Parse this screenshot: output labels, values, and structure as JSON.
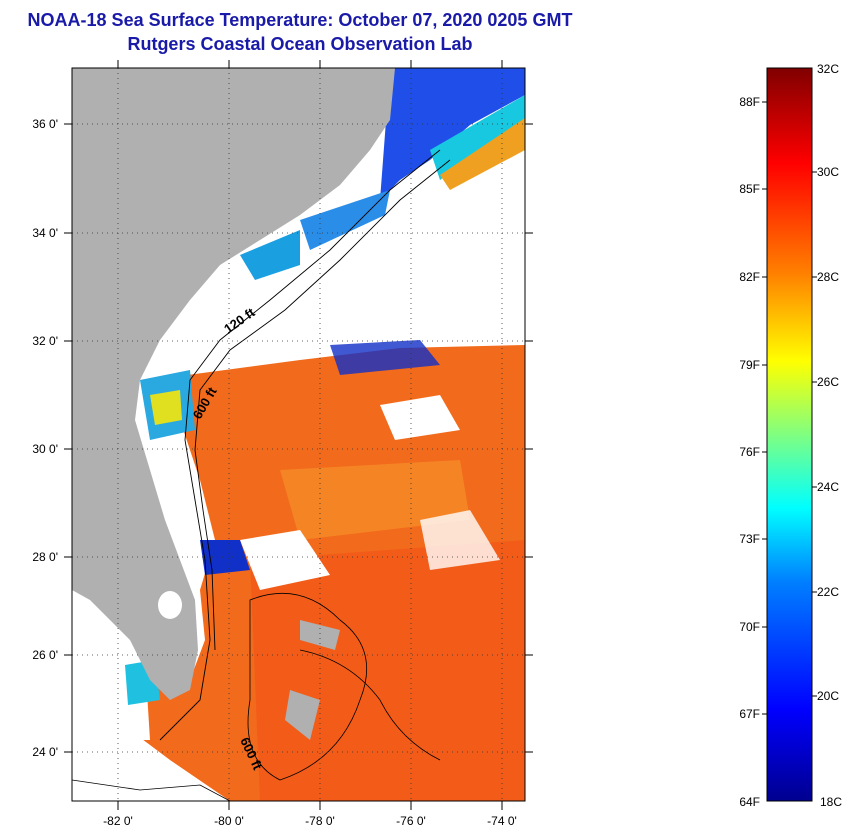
{
  "title_line1": "NOAA-18 Sea Surface Temperature:  October 07, 2020 0205 GMT",
  "title_line2": "Rutgers Coastal Ocean Observation Lab",
  "map": {
    "lon_ticks": [
      {
        "value": -82,
        "label": "-82 0'"
      },
      {
        "value": -80,
        "label": "-80 0'"
      },
      {
        "value": -78,
        "label": "-78 0'"
      },
      {
        "value": -76,
        "label": "-76 0'"
      },
      {
        "value": -74,
        "label": "-74 0'"
      }
    ],
    "lat_ticks": [
      {
        "value": 36,
        "label": "36 0'"
      },
      {
        "value": 34,
        "label": "34 0'"
      },
      {
        "value": 32,
        "label": "32 0'"
      },
      {
        "value": 30,
        "label": "30 0'"
      },
      {
        "value": 28,
        "label": "28 0'"
      },
      {
        "value": 26,
        "label": "26 0'"
      },
      {
        "value": 24,
        "label": "24 0'"
      }
    ],
    "lon_range": [
      -83,
      -73
    ],
    "lat_range": [
      23,
      37
    ],
    "depth_labels": [
      "120 ft",
      "600 ft",
      "600 ft"
    ],
    "colors": {
      "land": "#b0b0b0",
      "cloud": "#ffffff",
      "warm": "#f26a1b",
      "cool": "#0a3fe0"
    }
  },
  "colorbar": {
    "range_c": [
      18,
      32
    ],
    "celsius_labels": [
      "32C",
      "30C",
      "28C",
      "26C",
      "24C",
      "22C",
      "20C",
      "18C"
    ],
    "fahrenheit_labels": [
      "88F",
      "85F",
      "82F",
      "79F",
      "76F",
      "73F",
      "70F",
      "67F",
      "64F"
    ],
    "colormap": [
      "#00008f",
      "#0000ff",
      "#0080ff",
      "#00ffff",
      "#80ff80",
      "#ffff00",
      "#ff8000",
      "#ff0000",
      "#800000"
    ]
  }
}
